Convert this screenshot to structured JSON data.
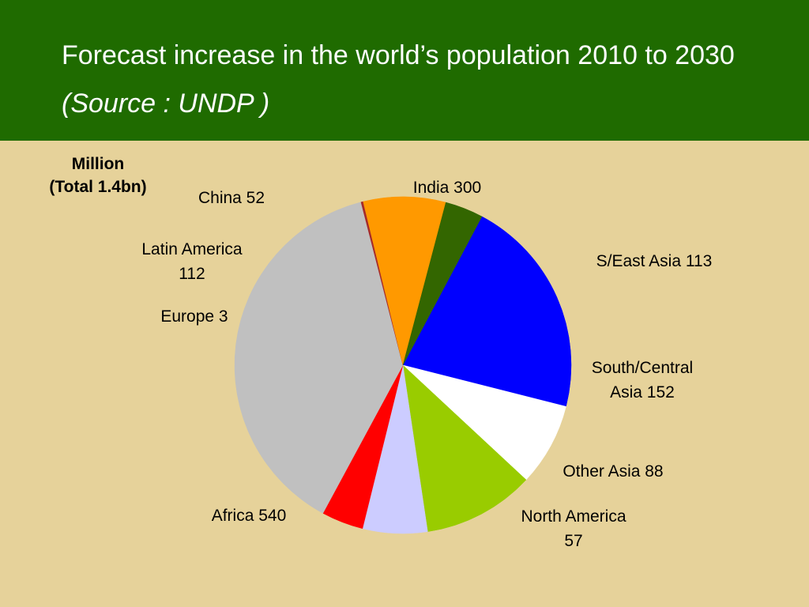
{
  "title": {
    "main": "Forecast increase in the world’s population 2010 to 2030",
    "source": "(Source : UNDP )"
  },
  "unit_label": {
    "line1": "Million",
    "line2": "(Total 1.4bn)"
  },
  "chart_data": {
    "type": "pie",
    "title": "Forecast increase in the world’s population 2010 to 2030 (Source : UNDP )",
    "unit": "Million",
    "total_label": "(Total 1.4bn)",
    "start_angle_deg": -62,
    "slices": [
      {
        "name": "India",
        "value": 300,
        "color": "#0000ff",
        "label": [
          "India 300"
        ]
      },
      {
        "name": "S/East Asia",
        "value": 113,
        "color": "#ffffff",
        "label": [
          "S/East Asia 113"
        ]
      },
      {
        "name": "South/Central Asia",
        "value": 152,
        "color": "#99cc00",
        "label": [
          "South/Central",
          "Asia 152"
        ]
      },
      {
        "name": "Other Asia",
        "value": 88,
        "color": "#ccccff",
        "label": [
          "Other Asia 88"
        ]
      },
      {
        "name": "North America",
        "value": 57,
        "color": "#ff0000",
        "label": [
          "North America",
          "57"
        ]
      },
      {
        "name": "Africa",
        "value": 540,
        "color": "#c0c0c0",
        "label": [
          "Africa 540"
        ]
      },
      {
        "name": "Europe",
        "value": 3,
        "color": "#a52a2a",
        "label": [
          "Europe 3"
        ]
      },
      {
        "name": "Latin America",
        "value": 112,
        "color": "#ff9900",
        "label": [
          "Latin America",
          "112"
        ]
      },
      {
        "name": "China",
        "value": 52,
        "color": "#336600",
        "label": [
          "China 52"
        ]
      }
    ]
  }
}
